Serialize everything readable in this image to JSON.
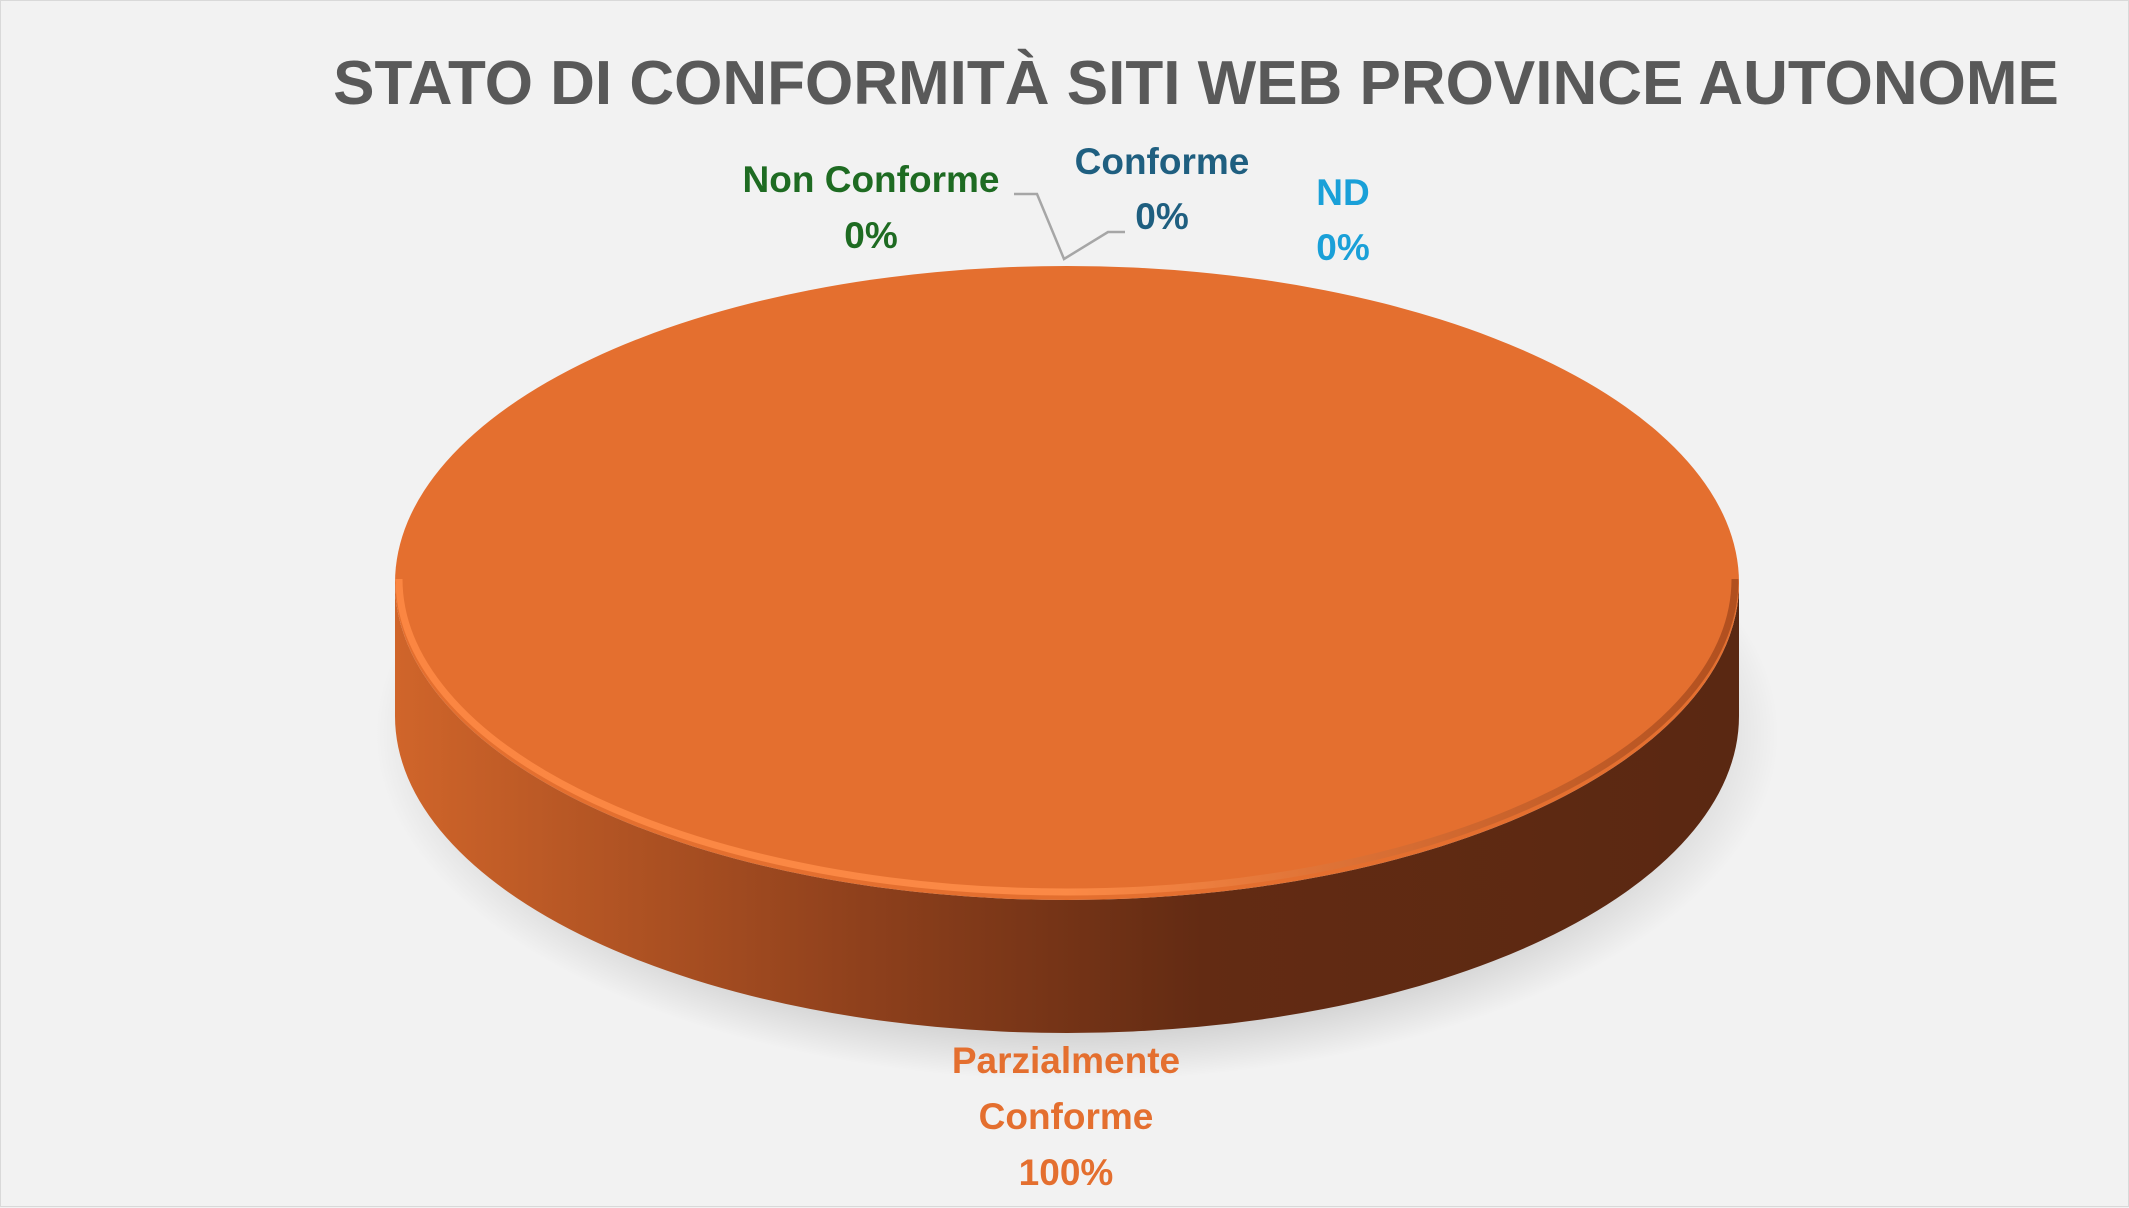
{
  "chart_data": {
    "type": "pie",
    "style": "3d",
    "title": "STATO DI CONFORMITÀ SITI WEB PROVINCE AUTONOME",
    "categories": [
      "Non Conforme",
      "Conforme",
      "ND",
      "Parzialmente Conforme"
    ],
    "values": [
      0,
      0,
      0,
      100
    ],
    "data_labels": [
      "0%",
      "0%",
      "0%",
      "100%"
    ],
    "colors": {
      "Non Conforme": "#1e6b22",
      "Conforme": "#1f5f80",
      "ND": "#1aa0d8",
      "Parzialmente Conforme": "#e46f2f"
    },
    "legend": "none",
    "label_lines": {
      "parzialmente_line1": "Parzialmente",
      "parzialmente_line2": "Conforme"
    }
  }
}
